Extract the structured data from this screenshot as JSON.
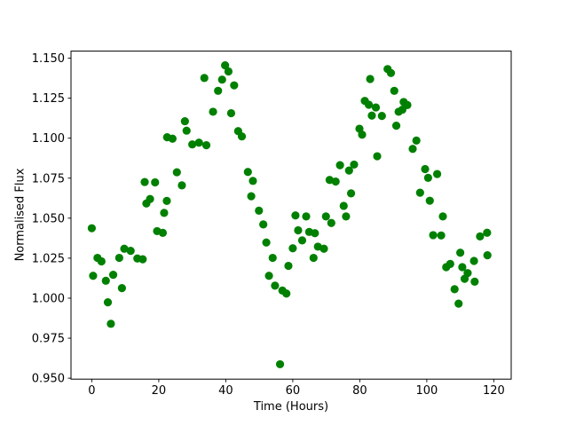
{
  "chart_data": {
    "type": "scatter",
    "title": "",
    "xlabel": "Time (Hours)",
    "ylabel": "Normalised Flux",
    "xlim": [
      -6.2,
      125.2
    ],
    "ylim": [
      0.9494,
      1.1544
    ],
    "xticks": {
      "values": [
        0,
        20,
        40,
        60,
        80,
        100,
        120
      ],
      "labels": [
        "0",
        "20",
        "40",
        "60",
        "80",
        "100",
        "120"
      ]
    },
    "yticks": {
      "values": [
        0.95,
        0.975,
        1.0,
        1.025,
        1.05,
        1.075,
        1.1,
        1.125,
        1.15
      ],
      "labels": [
        "0.950",
        "0.975",
        "1.000",
        "1.025",
        "1.050",
        "1.075",
        "1.100",
        "1.125",
        "1.150"
      ]
    },
    "grid": false,
    "legend": null,
    "marker": {
      "shape": "circle",
      "color": "#008000",
      "radius_px": 4.6
    },
    "axis_color": "#000000",
    "background_color": "#ffffff",
    "points": [
      [
        0.0,
        1.0437
      ],
      [
        0.4,
        1.014
      ],
      [
        1.7,
        1.0252
      ],
      [
        2.9,
        1.023
      ],
      [
        4.2,
        1.0109
      ],
      [
        4.8,
        0.9974
      ],
      [
        5.7,
        0.984
      ],
      [
        6.4,
        1.0146
      ],
      [
        8.2,
        1.0252
      ],
      [
        9.0,
        1.0063
      ],
      [
        9.7,
        1.0309
      ],
      [
        11.6,
        1.0296
      ],
      [
        13.6,
        1.0248
      ],
      [
        15.2,
        1.0243
      ],
      [
        15.8,
        1.0726
      ],
      [
        16.3,
        1.0592
      ],
      [
        17.4,
        1.062
      ],
      [
        18.9,
        1.0724
      ],
      [
        19.5,
        1.0419
      ],
      [
        21.2,
        1.0408
      ],
      [
        21.6,
        1.0533
      ],
      [
        22.4,
        1.0608
      ],
      [
        22.5,
        1.1006
      ],
      [
        24.1,
        1.0997
      ],
      [
        25.4,
        1.0787
      ],
      [
        26.9,
        1.0705
      ],
      [
        27.8,
        1.1106
      ],
      [
        28.3,
        1.1047
      ],
      [
        30.0,
        1.0961
      ],
      [
        32.0,
        1.0972
      ],
      [
        33.6,
        1.1376
      ],
      [
        34.2,
        1.0956
      ],
      [
        36.2,
        1.1165
      ],
      [
        37.7,
        1.1296
      ],
      [
        38.9,
        1.1366
      ],
      [
        39.8,
        1.1455
      ],
      [
        40.8,
        1.1417
      ],
      [
        41.6,
        1.1156
      ],
      [
        42.5,
        1.133
      ],
      [
        43.7,
        1.1044
      ],
      [
        44.8,
        1.1011
      ],
      [
        46.6,
        1.0789
      ],
      [
        47.6,
        1.0637
      ],
      [
        48.1,
        1.0733
      ],
      [
        49.9,
        1.0547
      ],
      [
        51.2,
        1.0461
      ],
      [
        52.1,
        1.0348
      ],
      [
        52.9,
        1.014
      ],
      [
        54.0,
        1.0252
      ],
      [
        54.7,
        1.0078
      ],
      [
        56.2,
        0.9587
      ],
      [
        56.9,
        1.0048
      ],
      [
        58.1,
        1.0029
      ],
      [
        58.7,
        1.0202
      ],
      [
        60.0,
        1.0312
      ],
      [
        60.8,
        1.0517
      ],
      [
        61.6,
        1.0424
      ],
      [
        62.8,
        1.0361
      ],
      [
        64.0,
        1.0511
      ],
      [
        64.9,
        1.0414
      ],
      [
        66.2,
        1.0252
      ],
      [
        66.6,
        1.0406
      ],
      [
        67.5,
        1.0322
      ],
      [
        69.3,
        1.0309
      ],
      [
        69.9,
        1.0511
      ],
      [
        71.0,
        1.0739
      ],
      [
        71.5,
        1.047
      ],
      [
        72.8,
        1.0729
      ],
      [
        74.1,
        1.0831
      ],
      [
        75.2,
        1.0577
      ],
      [
        75.9,
        1.0511
      ],
      [
        76.8,
        1.0798
      ],
      [
        77.4,
        1.0655
      ],
      [
        78.3,
        1.0835
      ],
      [
        79.9,
        1.1059
      ],
      [
        80.7,
        1.1022
      ],
      [
        81.5,
        1.1233
      ],
      [
        82.7,
        1.1209
      ],
      [
        83.1,
        1.137
      ],
      [
        83.6,
        1.1141
      ],
      [
        84.8,
        1.1192
      ],
      [
        85.2,
        1.0887
      ],
      [
        86.6,
        1.1139
      ],
      [
        88.3,
        1.1432
      ],
      [
        89.3,
        1.1407
      ],
      [
        90.3,
        1.1296
      ],
      [
        90.9,
        1.1078
      ],
      [
        91.6,
        1.1165
      ],
      [
        92.7,
        1.1178
      ],
      [
        93.1,
        1.1226
      ],
      [
        94.2,
        1.1207
      ],
      [
        95.8,
        1.0933
      ],
      [
        96.9,
        1.0985
      ],
      [
        98.0,
        1.0659
      ],
      [
        99.5,
        1.0807
      ],
      [
        100.4,
        1.0752
      ],
      [
        100.9,
        1.0609
      ],
      [
        101.9,
        1.0394
      ],
      [
        103.1,
        1.0776
      ],
      [
        104.3,
        1.0392
      ],
      [
        104.8,
        1.0511
      ],
      [
        105.8,
        1.0194
      ],
      [
        107.0,
        1.0214
      ],
      [
        108.3,
        1.0056
      ],
      [
        109.5,
        0.9966
      ],
      [
        110.0,
        1.0284
      ],
      [
        110.6,
        1.0194
      ],
      [
        111.3,
        1.0121
      ],
      [
        112.2,
        1.0157
      ],
      [
        114.1,
        1.0233
      ],
      [
        114.3,
        1.0103
      ],
      [
        115.9,
        1.0386
      ],
      [
        118.0,
        1.0409
      ],
      [
        118.1,
        1.0268
      ]
    ]
  }
}
